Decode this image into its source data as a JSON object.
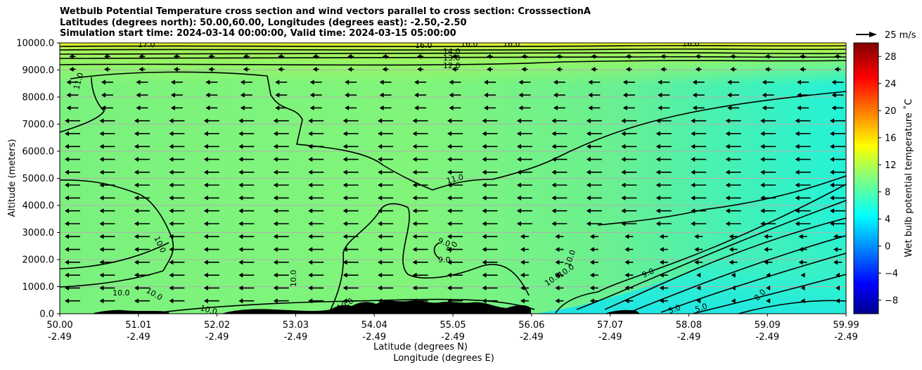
{
  "title_lines": [
    "Wetbulb Potential Temperature cross section and wind vectors parallel to cross section: CrosssectionA",
    "Latitudes (degrees north): 50.00,60.00, Longitudes (degrees east): -2.50,-2.50",
    "Simulation start time: 2024-03-14 00:00:00, Valid time: 2024-03-15 05:00:00"
  ],
  "chart_data": {
    "type": "heatmap",
    "xlabel_line1": "Latitude (degrees N)",
    "xlabel_line2": "Longitude (degrees E)",
    "ylabel": "Altitude (meters)",
    "ylim": [
      0,
      10000
    ],
    "x_ticks": [
      {
        "lat": "50.00",
        "lon": "-2.49"
      },
      {
        "lat": "51.01",
        "lon": "-2.49"
      },
      {
        "lat": "52.02",
        "lon": "-2.49"
      },
      {
        "lat": "53.03",
        "lon": "-2.49"
      },
      {
        "lat": "54.04",
        "lon": "-2.49"
      },
      {
        "lat": "55.05",
        "lon": "-2.49"
      },
      {
        "lat": "56.06",
        "lon": "-2.49"
      },
      {
        "lat": "57.07",
        "lon": "-2.49"
      },
      {
        "lat": "58.08",
        "lon": "-2.49"
      },
      {
        "lat": "59.09",
        "lon": "-2.49"
      },
      {
        "lat": "59.99",
        "lon": "-2.49"
      }
    ],
    "y_ticks": [
      "0.0",
      "1000.0",
      "2000.0",
      "3000.0",
      "4000.0",
      "5000.0",
      "6000.0",
      "7000.0",
      "8000.0",
      "9000.0",
      "10000.0"
    ],
    "grid": "horizontal",
    "colorbar": {
      "label": "Wet bulb potential temperature ˚C",
      "min": -10,
      "max": 30,
      "ticks": [
        -8,
        -4,
        0,
        4,
        8,
        12,
        16,
        20,
        24,
        28
      ],
      "colormap": "jet"
    },
    "wind_key": "25 m/s",
    "wind_direction": "toward south (leftward), roughly 8-10 m/s throughout",
    "contour_labels": [
      "17.0",
      "16.0",
      "16.0",
      "16.0",
      "16.0",
      "14.0",
      "13.0",
      "12.0",
      "11.0",
      "11.0",
      "10.0",
      "10.0",
      "10.0",
      "10.0",
      "10.0",
      "10.0",
      "10.0",
      "10.0",
      "10.0",
      "9.0",
      "9.0",
      "9.0",
      "9.0",
      "8.0",
      "5.0",
      "5.0"
    ],
    "field_summary": [
      {
        "region": "upper layer near 10000 m",
        "value": 16
      },
      {
        "region": "bulk of section",
        "value": 11
      },
      {
        "region": "low levels south",
        "value": 10
      },
      {
        "region": "low levels north",
        "value": 5
      }
    ]
  }
}
